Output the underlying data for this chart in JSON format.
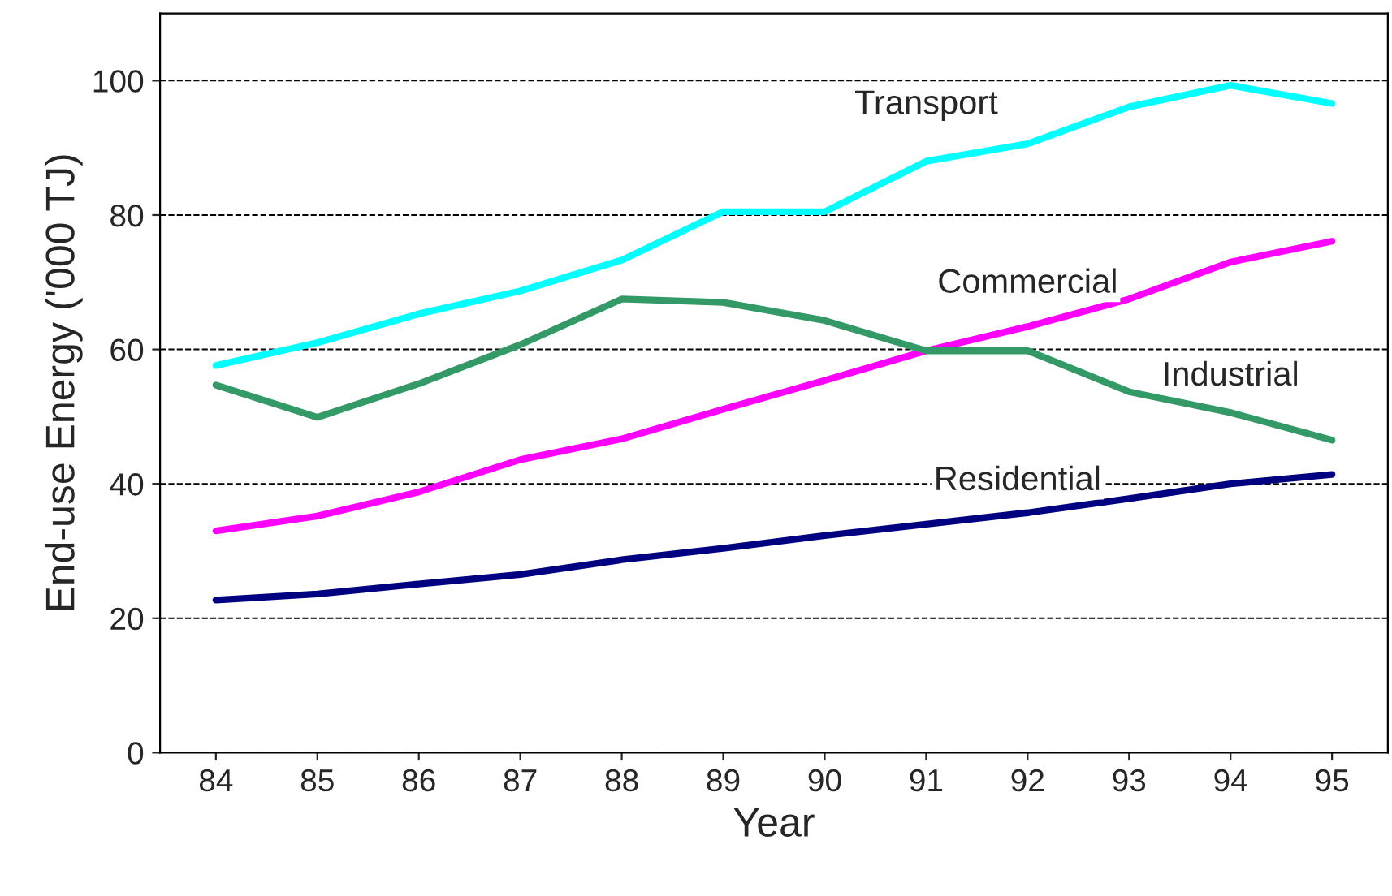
{
  "chart_data": {
    "type": "line",
    "xlabel": "Year",
    "ylabel": "End-use Energy ('000 TJ)",
    "categories": [
      "84",
      "85",
      "86",
      "87",
      "88",
      "89",
      "90",
      "91",
      "92",
      "93",
      "94",
      "95"
    ],
    "series": [
      {
        "name": "Transport",
        "color": "#00ffff",
        "values": [
          57.6,
          61,
          65.3,
          68.7,
          73.3,
          80.5,
          80.5,
          88,
          90.6,
          96.1,
          99.3,
          96.6
        ]
      },
      {
        "name": "Commercial",
        "color": "#ff00ff",
        "values": [
          33,
          35.2,
          38.8,
          43.6,
          46.7,
          51.1,
          55.4,
          59.8,
          63.4,
          67.5,
          73,
          76.1
        ]
      },
      {
        "name": "Industrial",
        "color": "#339966",
        "values": [
          54.7,
          49.9,
          54.9,
          60.7,
          67.5,
          67,
          64.3,
          59.8,
          59.8,
          53.7,
          50.6,
          46.5
        ]
      },
      {
        "name": "Residential",
        "color": "#000080",
        "values": [
          22.7,
          23.6,
          25.1,
          26.5,
          28.7,
          30.4,
          32.3,
          34,
          35.7,
          37.8,
          40,
          41.4
        ]
      }
    ],
    "ylim": [
      0,
      110
    ],
    "yticks": [
      0,
      20,
      40,
      60,
      80,
      100
    ],
    "grid": "y",
    "legend": false,
    "marker": "none",
    "line_style": "solid"
  }
}
